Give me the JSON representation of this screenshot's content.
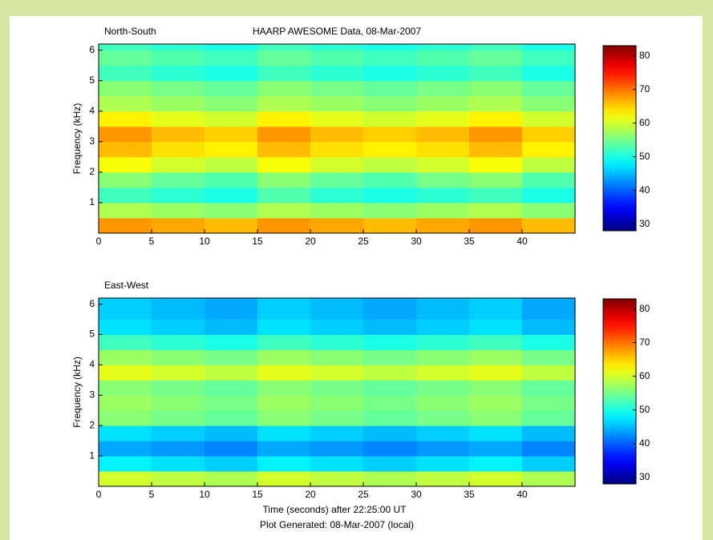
{
  "title": "HAARP AWESOME Data, 08-Mar-2007",
  "footer": "Plot Generated: 08-Mar-2007 (local)",
  "chart_data": [
    {
      "type": "heatmap",
      "title": "North-South",
      "ylabel": "Frequency (kHz)",
      "colormap": "jet",
      "xbins": [
        0,
        5,
        10,
        15,
        20,
        25,
        30,
        35,
        40,
        45
      ],
      "ybins": [
        0,
        0.5,
        1,
        1.5,
        2,
        2.5,
        3,
        3.5,
        4,
        4.5,
        5,
        5.5,
        6,
        6.2
      ],
      "z": [
        [
          68,
          67,
          66,
          68,
          67,
          66,
          67,
          68,
          66
        ],
        [
          58,
          57,
          56,
          58,
          57,
          56,
          57,
          58,
          56
        ],
        [
          52,
          51,
          50,
          53,
          51,
          50,
          51,
          52,
          50
        ],
        [
          56,
          54,
          53,
          56,
          54,
          53,
          55,
          56,
          53
        ],
        [
          62,
          60,
          59,
          62,
          60,
          59,
          60,
          62,
          59
        ],
        [
          66,
          64,
          63,
          66,
          64,
          63,
          64,
          66,
          63
        ],
        [
          68,
          66,
          65,
          68,
          66,
          65,
          66,
          68,
          65
        ],
        [
          63,
          61,
          60,
          63,
          61,
          60,
          61,
          63,
          60
        ],
        [
          58,
          57,
          56,
          58,
          57,
          56,
          57,
          58,
          56
        ],
        [
          56,
          55,
          54,
          56,
          55,
          54,
          55,
          56,
          54
        ],
        [
          52,
          51,
          50,
          52,
          51,
          50,
          51,
          52,
          50
        ],
        [
          54,
          53,
          52,
          54,
          53,
          52,
          53,
          54,
          52
        ],
        [
          52,
          51,
          50,
          52,
          51,
          50,
          51,
          52,
          50
        ]
      ],
      "xlim": [
        0,
        45
      ],
      "ylim": [
        0,
        6.2
      ],
      "xticks": [
        0,
        5,
        10,
        15,
        20,
        25,
        30,
        35,
        40
      ],
      "yticks": [
        1,
        2,
        3,
        4,
        5,
        6
      ],
      "clim": [
        28,
        83
      ],
      "cticks": [
        30,
        40,
        50,
        60,
        70,
        80
      ]
    },
    {
      "type": "heatmap",
      "title": "East-West",
      "ylabel": "Frequency (kHz)",
      "xlabel": "Time (seconds) after 22:25:00 UT",
      "colormap": "jet",
      "xbins": [
        0,
        5,
        10,
        15,
        20,
        25,
        30,
        35,
        40,
        45
      ],
      "ybins": [
        0,
        0.5,
        1,
        1.5,
        2,
        2.5,
        3,
        3.5,
        4,
        4.5,
        5,
        5.5,
        6,
        6.2
      ],
      "z": [
        [
          60,
          59,
          58,
          60,
          59,
          58,
          59,
          60,
          58
        ],
        [
          48,
          47,
          46,
          48,
          47,
          46,
          47,
          48,
          46
        ],
        [
          44,
          43,
          42,
          44,
          43,
          42,
          43,
          44,
          42
        ],
        [
          47,
          46,
          45,
          47,
          46,
          45,
          46,
          47,
          45
        ],
        [
          56,
          55,
          54,
          56,
          55,
          54,
          55,
          56,
          54
        ],
        [
          57,
          56,
          55,
          57,
          56,
          55,
          56,
          57,
          55
        ],
        [
          56,
          55,
          54,
          56,
          55,
          54,
          55,
          56,
          54
        ],
        [
          61,
          60,
          59,
          61,
          60,
          59,
          60,
          61,
          59
        ],
        [
          57,
          56,
          55,
          57,
          56,
          55,
          56,
          57,
          55
        ],
        [
          52,
          51,
          50,
          52,
          51,
          50,
          51,
          52,
          50
        ],
        [
          47,
          46,
          45,
          47,
          46,
          45,
          46,
          47,
          45
        ],
        [
          46,
          45,
          44,
          46,
          45,
          44,
          45,
          46,
          44
        ],
        [
          46,
          45,
          44,
          46,
          45,
          44,
          45,
          46,
          44
        ]
      ],
      "xlim": [
        0,
        45
      ],
      "ylim": [
        0,
        6.2
      ],
      "xticks": [
        0,
        5,
        10,
        15,
        20,
        25,
        30,
        35,
        40
      ],
      "yticks": [
        1,
        2,
        3,
        4,
        5,
        6
      ],
      "clim": [
        28,
        83
      ],
      "cticks": [
        30,
        40,
        50,
        60,
        70,
        80
      ]
    }
  ]
}
